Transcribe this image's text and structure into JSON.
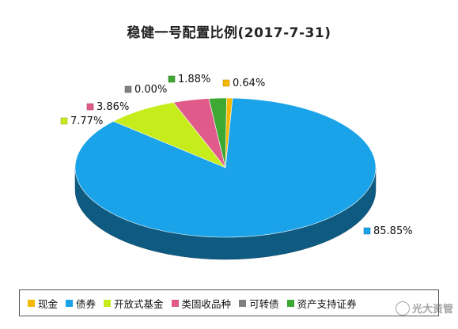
{
  "chart_data": {
    "type": "pie",
    "title": "稳健一号配置比例(2017-7-31)",
    "categories": [
      "现金",
      "债券",
      "开放式基金",
      "类固收品种",
      "可转债",
      "资产支持证券"
    ],
    "values": [
      0.64,
      85.85,
      7.77,
      3.86,
      0.0,
      1.88
    ],
    "value_labels": [
      "0.64%",
      "85.85%",
      "7.77%",
      "3.86%",
      "0.00%",
      "1.88%"
    ],
    "colors": [
      "#f5b800",
      "#1aa3e8",
      "#c6ec1c",
      "#e05a8a",
      "#808080",
      "#3da832"
    ],
    "legend_position": "bottom",
    "style": "3d"
  },
  "legend": {
    "items": [
      "现金",
      "债券",
      "开放式基金",
      "类固收品种",
      "可转债",
      "资产支持证券"
    ]
  },
  "watermark": {
    "text": "光大资管"
  }
}
